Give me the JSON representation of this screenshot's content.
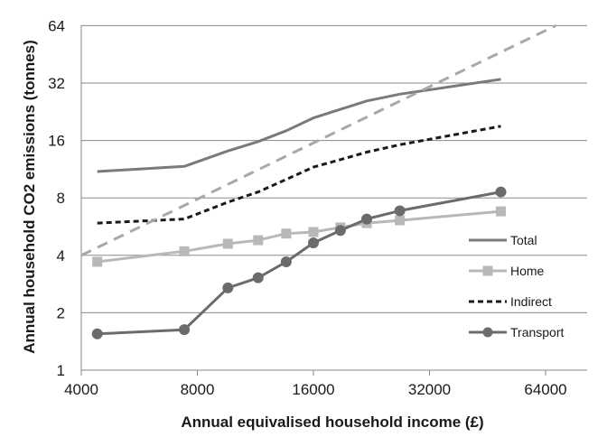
{
  "chart_data": {
    "type": "line",
    "xlabel": "Annual equivalised household income (£)",
    "ylabel": "Annual household CO2 emissions (tonnes)",
    "x_scale": "log2",
    "y_scale": "log2",
    "xlim": [
      4000,
      80000
    ],
    "ylim": [
      1,
      64
    ],
    "x_ticks": [
      4000,
      8000,
      16000,
      32000,
      64000
    ],
    "x_tick_labels": [
      "4000",
      "8000",
      "16000",
      "32000",
      "64000"
    ],
    "y_ticks": [
      1,
      2,
      4,
      8,
      16,
      32,
      64
    ],
    "y_tick_labels": [
      "1",
      "2",
      "4",
      "8",
      "16",
      "32",
      "64"
    ],
    "grid": "horizontal",
    "legend_position": "right",
    "series": [
      {
        "name": "Total",
        "style": "solid",
        "marker": "none",
        "color": "#7a7a7a",
        "x": [
          4400,
          7400,
          9600,
          11500,
          13600,
          16000,
          18800,
          22000,
          26800,
          49000
        ],
        "y": [
          11.0,
          11.7,
          14.1,
          15.8,
          18.0,
          21.0,
          23.3,
          25.8,
          28.0,
          33.5
        ]
      },
      {
        "name": "Home",
        "style": "solid",
        "marker": "square",
        "color": "#b8b8b8",
        "x": [
          4400,
          7400,
          9600,
          11500,
          13600,
          16000,
          18800,
          22000,
          26800,
          49000
        ],
        "y": [
          3.7,
          4.2,
          4.6,
          4.8,
          5.2,
          5.3,
          5.6,
          5.9,
          6.1,
          6.8
        ]
      },
      {
        "name": "Indirect",
        "style": "dashed",
        "marker": "none",
        "color": "#1a1a1a",
        "x": [
          4400,
          7400,
          9600,
          11500,
          13600,
          16000,
          18800,
          22000,
          26800,
          49000
        ],
        "y": [
          5.9,
          6.2,
          7.6,
          8.6,
          10.0,
          11.6,
          12.7,
          13.9,
          15.2,
          19.0
        ]
      },
      {
        "name": "Transport",
        "style": "solid",
        "marker": "circle",
        "color": "#6b6b6b",
        "x": [
          4400,
          7400,
          9600,
          11500,
          13600,
          16000,
          18800,
          22000,
          26800,
          49000
        ],
        "y": [
          1.55,
          1.63,
          2.7,
          3.05,
          3.7,
          4.65,
          5.4,
          6.2,
          6.85,
          8.6
        ]
      },
      {
        "style": "dashed",
        "marker": "none",
        "color": "#a8a8a8",
        "x": [
          4000,
          68000
        ],
        "y": [
          4.0,
          64.0
        ]
      }
    ]
  }
}
